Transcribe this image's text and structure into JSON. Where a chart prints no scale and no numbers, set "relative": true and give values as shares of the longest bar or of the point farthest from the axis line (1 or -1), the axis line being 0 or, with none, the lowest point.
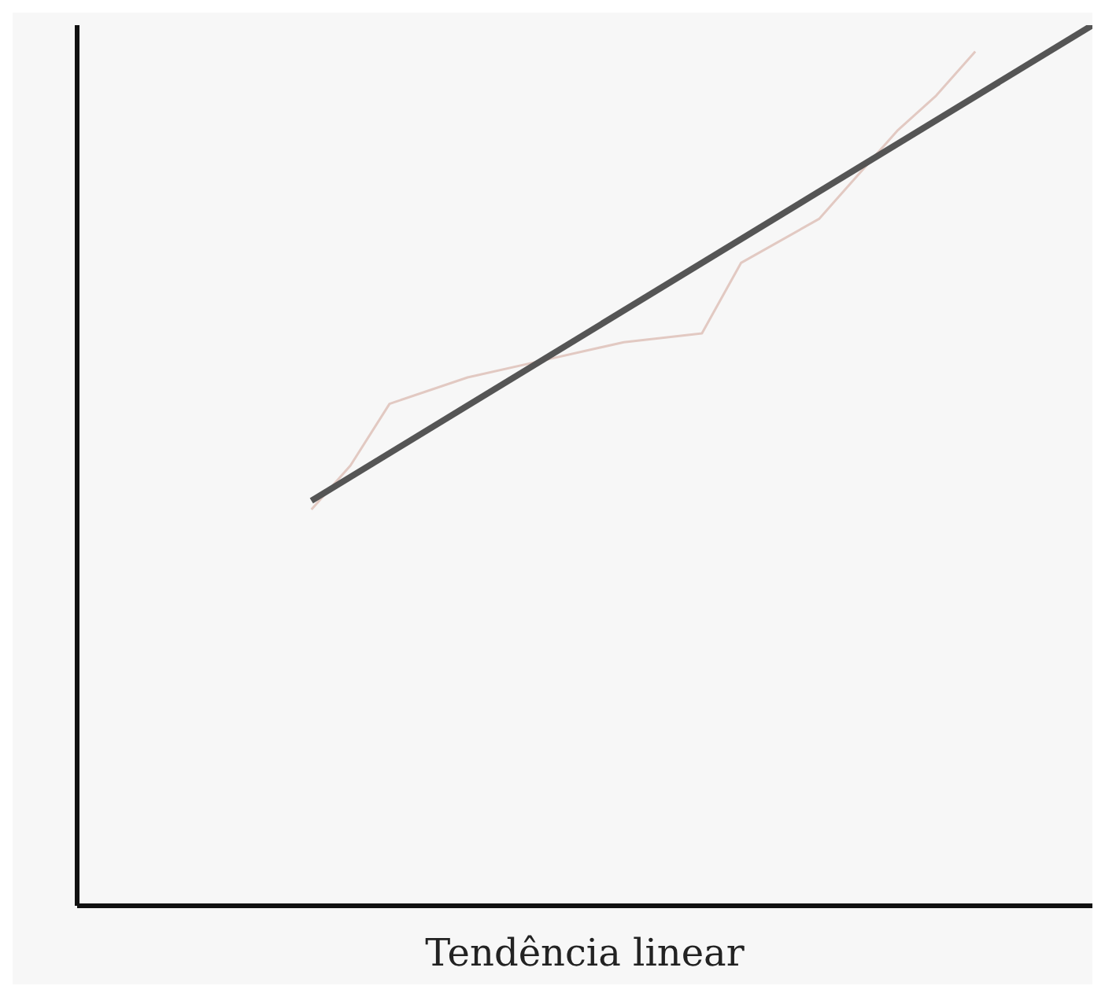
{
  "chart_data": {
    "type": "line",
    "xlabel": "Tendência linear",
    "relative": true,
    "categories": [
      null,
      null,
      null,
      null,
      null,
      null,
      null,
      null,
      null,
      null,
      null,
      null,
      null,
      null,
      null,
      null,
      null,
      null,
      null,
      null,
      null,
      null,
      null,
      null,
      null,
      null,
      null
    ],
    "series": [
      {
        "color": "#e2c9c2",
        "values": [
          null,
          null,
          null,
          null,
          null,
          null,
          0.45,
          0.5,
          0.57,
          null,
          0.6,
          null,
          0.62,
          null,
          0.64,
          null,
          0.65,
          0.73,
          null,
          0.78,
          null,
          0.88,
          0.92,
          0.97,
          null,
          null,
          null
        ]
      },
      {
        "color": "#555555",
        "values": [
          null,
          null,
          null,
          null,
          null,
          null,
          0.46,
          null,
          null,
          null,
          null,
          null,
          null,
          null,
          null,
          null,
          null,
          null,
          null,
          null,
          null,
          null,
          null,
          null,
          null,
          null,
          1
        ]
      }
    ]
  }
}
